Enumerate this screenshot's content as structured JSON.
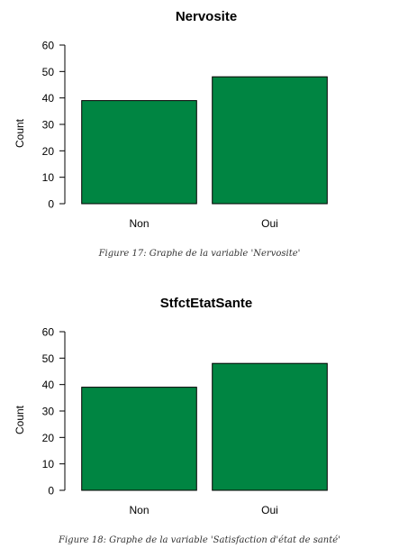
{
  "bar_color": "#008542",
  "figures": [
    {
      "caption": "Figure 17: Graphe de la variable 'Nervosite'",
      "chart_data": {
        "type": "bar",
        "title": "Nervosite",
        "xlabel": "",
        "ylabel": "Count",
        "categories": [
          "Non",
          "Oui"
        ],
        "values": [
          39,
          48
        ],
        "ylim": [
          0,
          60
        ],
        "yticks": [
          0,
          10,
          20,
          30,
          40,
          50,
          60
        ],
        "grid": false,
        "legend": "none"
      }
    },
    {
      "caption": "Figure 18: Graphe de la variable 'Satisfaction d'état de santé'",
      "chart_data": {
        "type": "bar",
        "title": "StfctEtatSante",
        "xlabel": "",
        "ylabel": "Count",
        "categories": [
          "Non",
          "Oui"
        ],
        "values": [
          39,
          48
        ],
        "ylim": [
          0,
          60
        ],
        "yticks": [
          0,
          10,
          20,
          30,
          40,
          50,
          60
        ],
        "grid": false,
        "legend": "none"
      }
    }
  ]
}
